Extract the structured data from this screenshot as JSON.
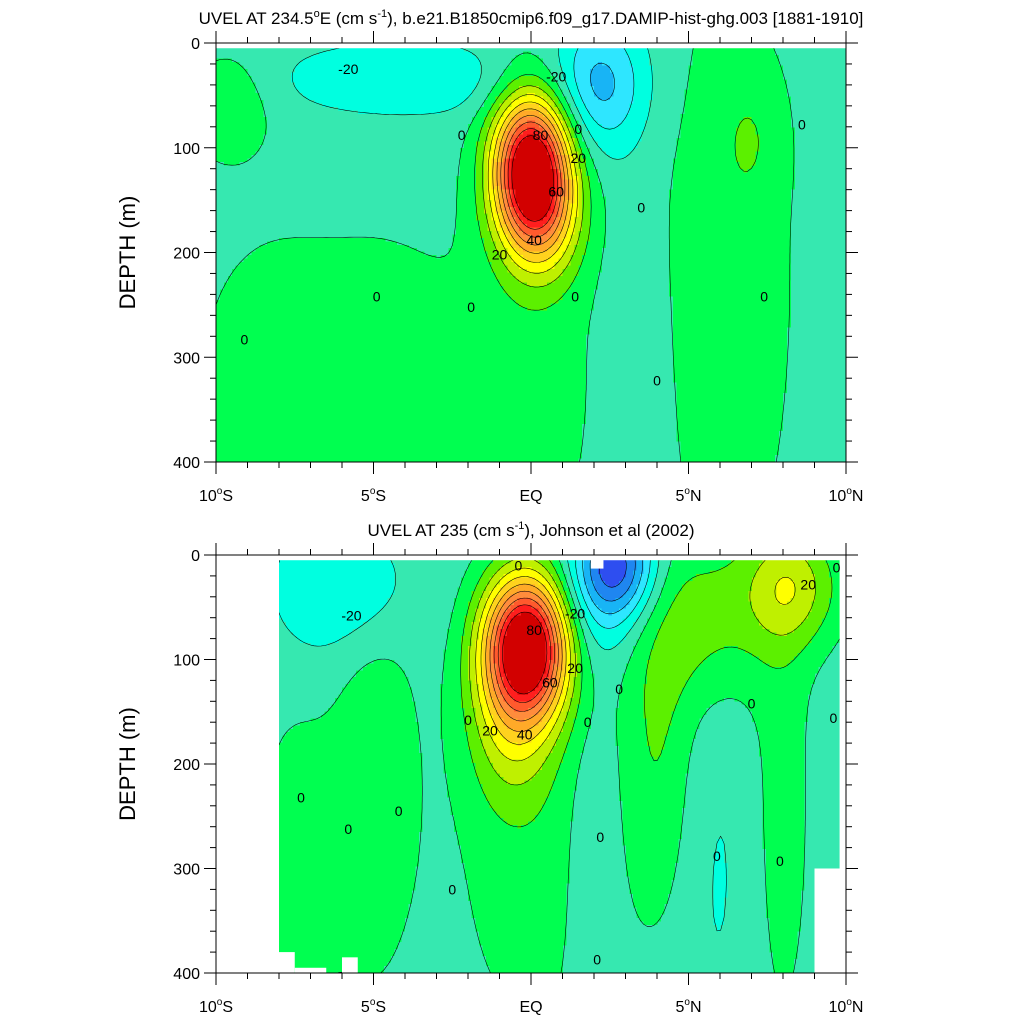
{
  "colors": {
    "levels": [
      -60,
      -50,
      -40,
      -30,
      -20,
      -10,
      0,
      10,
      20,
      30,
      40,
      50,
      60,
      70,
      80,
      90
    ],
    "palette": [
      "#1e1ee6",
      "#2e4ef0",
      "#1f86f0",
      "#18b4f5",
      "#2ee6ff",
      "#00ffe0",
      "#36e8b0",
      "#00ff50",
      "#5cf000",
      "#bff000",
      "#ffff00",
      "#ffd21e",
      "#ffaa28",
      "#ff8c3c",
      "#ff5a2d",
      "#ff1e1e",
      "#d20000"
    ],
    "contour_line": "#000000"
  },
  "chart_data": [
    {
      "type": "contour",
      "title_parts": [
        "UVEL AT 234.5",
        "o",
        "E (cm s",
        "-1",
        "), b.e21.B1850cmip6.f09_g17.DAMIP-hist-ghg.003 [1881-1910]"
      ],
      "ylabel": "DEPTH (m)",
      "xlim": [
        -10,
        10
      ],
      "ylim": [
        0,
        400
      ],
      "y_inverted": true,
      "x_ticks": [
        {
          "v": -10,
          "main": "10",
          "deg": "o",
          "suf": "S"
        },
        {
          "v": -5,
          "main": "5",
          "deg": "o",
          "suf": "S"
        },
        {
          "v": 0,
          "main": "EQ",
          "deg": "",
          "suf": ""
        },
        {
          "v": 5,
          "main": "5",
          "deg": "o",
          "suf": "N"
        },
        {
          "v": 10,
          "main": "10",
          "deg": "o",
          "suf": "N"
        }
      ],
      "y_ticks": [
        {
          "v": 0,
          "label": "0"
        },
        {
          "v": 100,
          "label": "100"
        },
        {
          "v": 200,
          "label": "200"
        },
        {
          "v": 300,
          "label": "300"
        },
        {
          "v": 400,
          "label": "400"
        }
      ],
      "data_xrange": [
        -10,
        10
      ],
      "data_top": 5,
      "background_value": -5,
      "features": [
        {
          "x": 0,
          "y": 115,
          "sx": 0.85,
          "sy": 48,
          "amp": 100
        },
        {
          "x": 0.3,
          "y": 165,
          "sx": 0.9,
          "sy": 45,
          "amp": 40
        },
        {
          "x": 2.2,
          "y": 40,
          "sx": 1.0,
          "sy": 45,
          "amp": -28
        },
        {
          "x": -4.0,
          "y": 35,
          "sx": 2.8,
          "sy": 25,
          "amp": -14
        },
        {
          "x": -8.3,
          "y": 330,
          "sx": 1.8,
          "sy": 110,
          "amp": 10
        },
        {
          "x": -4.6,
          "y": 330,
          "sx": 1.8,
          "sy": 110,
          "amp": 10
        },
        {
          "x": 0,
          "y": 320,
          "sx": 1.7,
          "sy": 140,
          "amp": 9
        },
        {
          "x": -9.6,
          "y": 60,
          "sx": 0.9,
          "sy": 35,
          "amp": 14
        },
        {
          "x": 6.2,
          "y": 230,
          "sx": 1.6,
          "sy": 220,
          "amp": 11
        },
        {
          "x": 7.0,
          "y": 90,
          "sx": 0.7,
          "sy": 45,
          "amp": 8
        },
        {
          "x": 3.3,
          "y": 330,
          "sx": 0.7,
          "sy": 120,
          "amp": -6
        }
      ],
      "mask": [],
      "labels": [
        {
          "x": -5.8,
          "y": 25,
          "text": "-20"
        },
        {
          "x": 0.8,
          "y": 32,
          "text": "-20"
        },
        {
          "x": -2.2,
          "y": 88,
          "text": "0"
        },
        {
          "x": 1.5,
          "y": 82,
          "text": "0"
        },
        {
          "x": 0.3,
          "y": 88,
          "text": "80"
        },
        {
          "x": 1.5,
          "y": 110,
          "text": "20"
        },
        {
          "x": 0.8,
          "y": 142,
          "text": "60"
        },
        {
          "x": 0.1,
          "y": 188,
          "text": "40"
        },
        {
          "x": -1.0,
          "y": 202,
          "text": "20"
        },
        {
          "x": 3.5,
          "y": 157,
          "text": "0"
        },
        {
          "x": -4.9,
          "y": 242,
          "text": "0"
        },
        {
          "x": -1.9,
          "y": 252,
          "text": "0"
        },
        {
          "x": 1.4,
          "y": 242,
          "text": "0"
        },
        {
          "x": -9.1,
          "y": 283,
          "text": "0"
        },
        {
          "x": 4.0,
          "y": 322,
          "text": "0"
        },
        {
          "x": 7.4,
          "y": 242,
          "text": "0"
        },
        {
          "x": 8.6,
          "y": 78,
          "text": "0"
        }
      ]
    },
    {
      "type": "contour",
      "title_parts": [
        "UVEL AT 235 (cm s",
        "-1",
        "), Johnson et al (2002)"
      ],
      "ylabel": "DEPTH (m)",
      "xlim": [
        -10,
        10
      ],
      "ylim": [
        0,
        400
      ],
      "y_inverted": true,
      "x_ticks": [
        {
          "v": -10,
          "main": "10",
          "deg": "o",
          "suf": "S"
        },
        {
          "v": -5,
          "main": "5",
          "deg": "o",
          "suf": "S"
        },
        {
          "v": 0,
          "main": "EQ",
          "deg": "",
          "suf": ""
        },
        {
          "v": 5,
          "main": "5",
          "deg": "o",
          "suf": "N"
        },
        {
          "v": 10,
          "main": "10",
          "deg": "o",
          "suf": "N"
        }
      ],
      "y_ticks": [
        {
          "v": 0,
          "label": "0"
        },
        {
          "v": 100,
          "label": "100"
        },
        {
          "v": 200,
          "label": "200"
        },
        {
          "v": 300,
          "label": "300"
        },
        {
          "v": 400,
          "label": "400"
        }
      ],
      "data_xrange": [
        -8,
        9.8
      ],
      "data_top": 5,
      "background_value": -6,
      "features": [
        {
          "x": -0.1,
          "y": 85,
          "sx": 0.95,
          "sy": 48,
          "amp": 110
        },
        {
          "x": -0.6,
          "y": 150,
          "sx": 1.0,
          "sy": 65,
          "amp": 30
        },
        {
          "x": 2.7,
          "y": 10,
          "sx": 0.9,
          "sy": 35,
          "amp": -50
        },
        {
          "x": 2.0,
          "y": 60,
          "sx": 1.4,
          "sy": 45,
          "amp": -15
        },
        {
          "x": -5.6,
          "y": 30,
          "sx": 1.2,
          "sy": 40,
          "amp": -15
        },
        {
          "x": -7.0,
          "y": 60,
          "sx": 1.2,
          "sy": 70,
          "amp": -7
        },
        {
          "x": -5.1,
          "y": 210,
          "sx": 1.1,
          "sy": 150,
          "amp": 13
        },
        {
          "x": -7.5,
          "y": 280,
          "sx": 0.9,
          "sy": 140,
          "amp": 10
        },
        {
          "x": 0.2,
          "y": 310,
          "sx": 2.0,
          "sy": 130,
          "amp": 10
        },
        {
          "x": 2.0,
          "y": 320,
          "sx": 0.6,
          "sy": 110,
          "amp": -8
        },
        {
          "x": 5.2,
          "y": 60,
          "sx": 1.8,
          "sy": 60,
          "amp": 20
        },
        {
          "x": 8.3,
          "y": 30,
          "sx": 1.1,
          "sy": 40,
          "amp": 28
        },
        {
          "x": 4.0,
          "y": 190,
          "sx": 0.8,
          "sy": 110,
          "amp": 14
        },
        {
          "x": 8.0,
          "y": 240,
          "sx": 0.7,
          "sy": 180,
          "amp": 10
        },
        {
          "x": 5.9,
          "y": 300,
          "sx": 0.8,
          "sy": 130,
          "amp": -5
        }
      ],
      "mask": [
        {
          "x0": -10,
          "y0": 355,
          "x1": -8,
          "y1": 400
        },
        {
          "x0": -8,
          "y0": 380,
          "x1": -7.5,
          "y1": 400
        },
        {
          "x0": -7.5,
          "y0": 395,
          "x1": -6.5,
          "y1": 400
        },
        {
          "x0": -6.0,
          "y0": 385,
          "x1": -5.5,
          "y1": 400
        },
        {
          "x0": 1.9,
          "y0": 0,
          "x1": 2.3,
          "y1": 13
        },
        {
          "x0": 9.0,
          "y0": 300,
          "x1": 10,
          "y1": 400
        },
        {
          "x0": 9.8,
          "y0": 0,
          "x1": 10,
          "y1": 300
        }
      ],
      "labels": [
        {
          "x": -0.4,
          "y": 10,
          "text": "0"
        },
        {
          "x": -5.7,
          "y": 58,
          "text": "-20"
        },
        {
          "x": 1.4,
          "y": 56,
          "text": "-20"
        },
        {
          "x": 0.1,
          "y": 72,
          "text": "80"
        },
        {
          "x": 1.4,
          "y": 108,
          "text": "20"
        },
        {
          "x": 0.6,
          "y": 122,
          "text": "60"
        },
        {
          "x": -0.2,
          "y": 172,
          "text": "40"
        },
        {
          "x": -1.3,
          "y": 168,
          "text": "20"
        },
        {
          "x": -2.0,
          "y": 158,
          "text": "0"
        },
        {
          "x": 1.8,
          "y": 160,
          "text": "0"
        },
        {
          "x": 2.8,
          "y": 128,
          "text": "0"
        },
        {
          "x": 7.0,
          "y": 142,
          "text": "0"
        },
        {
          "x": 8.8,
          "y": 28,
          "text": "20"
        },
        {
          "x": 9.7,
          "y": 12,
          "text": "0"
        },
        {
          "x": 9.6,
          "y": 156,
          "text": "0"
        },
        {
          "x": -7.3,
          "y": 232,
          "text": "0"
        },
        {
          "x": -5.8,
          "y": 262,
          "text": "0"
        },
        {
          "x": -4.2,
          "y": 245,
          "text": "0"
        },
        {
          "x": -2.5,
          "y": 320,
          "text": "0"
        },
        {
          "x": 2.2,
          "y": 270,
          "text": "0"
        },
        {
          "x": 5.9,
          "y": 288,
          "text": "0"
        },
        {
          "x": 7.9,
          "y": 293,
          "text": "0"
        },
        {
          "x": 2.1,
          "y": 387,
          "text": "0"
        }
      ]
    }
  ]
}
